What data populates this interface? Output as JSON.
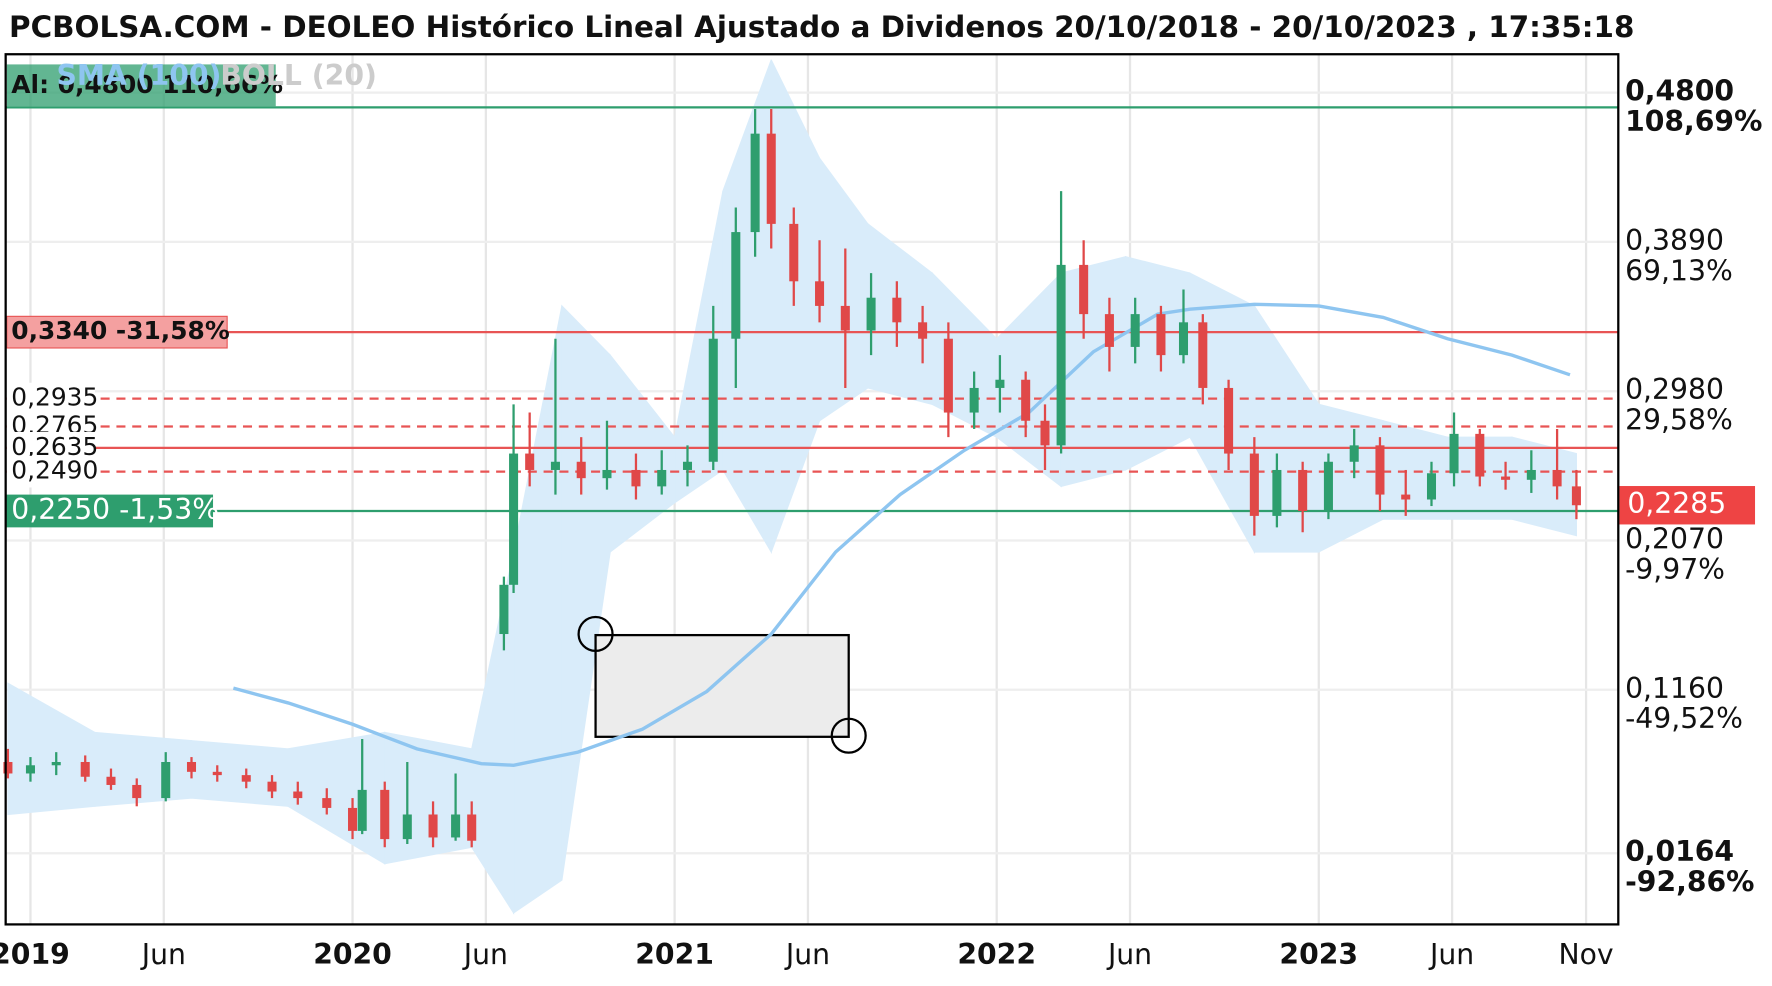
{
  "chart_data": {
    "type": "candlestick",
    "title": "PCBOLSA.COM - DEOLEO Histórico Lineal Ajustado a Dividenos 20/10/2018 - 20/10/2023 , 17:35:18",
    "xlim": [
      2018.923,
      2023.93
    ],
    "ylim": [
      -0.027,
      0.5034
    ],
    "y2lim": [
      -111.74,
      118.87
    ],
    "xticks": [
      {
        "value": 2019,
        "label": "2019"
      },
      {
        "value": 2019.414,
        "label": "Jun"
      },
      {
        "value": 2020,
        "label": "2020"
      },
      {
        "value": 2020.414,
        "label": "Jun"
      },
      {
        "value": 2021,
        "label": "2021"
      },
      {
        "value": 2021.414,
        "label": "Jun"
      },
      {
        "value": 2022,
        "label": "2022"
      },
      {
        "value": 2022.414,
        "label": "Jun"
      },
      {
        "value": 2023,
        "label": "2023"
      },
      {
        "value": 2023.414,
        "label": "Jun"
      },
      {
        "value": 2023.83,
        "label": "Nov"
      }
    ],
    "yticks": [
      {
        "value": 0.48,
        "label": "0,4800"
      },
      {
        "value": 0.389,
        "label": "0,3890"
      },
      {
        "value": 0.298,
        "label": "0,2980"
      },
      {
        "value": 0.207,
        "label": "0,2070"
      },
      {
        "value": 0.116,
        "label": "0,1160"
      },
      {
        "value": 0.0164,
        "label": "0,0164"
      }
    ],
    "y2ticks": [
      {
        "value": 108.69,
        "label": "108,69%"
      },
      {
        "value": 69.13,
        "label": "69,13%"
      },
      {
        "value": 29.58,
        "label": "29,58%"
      },
      {
        "value": -9.97,
        "label": "-9,97%"
      },
      {
        "value": -49.52,
        "label": "-49,52%"
      },
      {
        "value": -92.86,
        "label": "-92,86%"
      }
    ],
    "grid": true,
    "up_color": "#2e9e6e",
    "down_color": "#e04848",
    "candles": {
      "x": [
        2018.93,
        2019.0,
        2019.08,
        2019.17,
        2019.25,
        2019.33,
        2019.42,
        2019.5,
        2019.58,
        2019.67,
        2019.75,
        2019.83,
        2019.92,
        2020.0,
        2020.03,
        2020.1,
        2020.17,
        2020.25,
        2020.32,
        2020.37,
        2020.47,
        2020.5,
        2020.55,
        2020.63,
        2020.71,
        2020.79,
        2020.88,
        2020.96,
        2021.04,
        2021.12,
        2021.19,
        2021.25,
        2021.3,
        2021.37,
        2021.45,
        2021.53,
        2021.61,
        2021.69,
        2021.77,
        2021.85,
        2021.93,
        2022.01,
        2022.09,
        2022.15,
        2022.2,
        2022.27,
        2022.35,
        2022.43,
        2022.51,
        2022.58,
        2022.64,
        2022.72,
        2022.8,
        2022.87,
        2022.95,
        2023.03,
        2023.11,
        2023.19,
        2023.27,
        2023.35,
        2023.42,
        2023.5,
        2023.58,
        2023.66,
        2023.74,
        2023.8
      ],
      "open": [
        0.072,
        0.065,
        0.07,
        0.072,
        0.063,
        0.058,
        0.05,
        0.072,
        0.066,
        0.064,
        0.06,
        0.054,
        0.05,
        0.044,
        0.03,
        0.055,
        0.025,
        0.04,
        0.026,
        0.04,
        0.15,
        0.18,
        0.26,
        0.25,
        0.255,
        0.245,
        0.25,
        0.24,
        0.25,
        0.255,
        0.33,
        0.395,
        0.455,
        0.4,
        0.365,
        0.35,
        0.335,
        0.355,
        0.34,
        0.33,
        0.285,
        0.3,
        0.305,
        0.28,
        0.265,
        0.375,
        0.345,
        0.325,
        0.345,
        0.32,
        0.34,
        0.3,
        0.26,
        0.222,
        0.25,
        0.225,
        0.255,
        0.265,
        0.235,
        0.232,
        0.248,
        0.272,
        0.246,
        0.244,
        0.25,
        0.24
      ],
      "high": [
        0.08,
        0.075,
        0.078,
        0.076,
        0.068,
        0.062,
        0.078,
        0.075,
        0.07,
        0.068,
        0.064,
        0.06,
        0.056,
        0.05,
        0.086,
        0.06,
        0.072,
        0.048,
        0.065,
        0.048,
        0.185,
        0.29,
        0.285,
        0.33,
        0.27,
        0.28,
        0.26,
        0.262,
        0.265,
        0.35,
        0.41,
        0.47,
        0.47,
        0.41,
        0.39,
        0.385,
        0.37,
        0.365,
        0.35,
        0.34,
        0.31,
        0.32,
        0.31,
        0.29,
        0.42,
        0.39,
        0.355,
        0.355,
        0.35,
        0.36,
        0.345,
        0.305,
        0.27,
        0.26,
        0.255,
        0.26,
        0.275,
        0.27,
        0.25,
        0.255,
        0.285,
        0.275,
        0.255,
        0.262,
        0.275,
        0.25
      ],
      "low": [
        0.062,
        0.06,
        0.064,
        0.06,
        0.055,
        0.045,
        0.048,
        0.062,
        0.06,
        0.056,
        0.05,
        0.046,
        0.04,
        0.025,
        0.028,
        0.02,
        0.022,
        0.02,
        0.024,
        0.02,
        0.14,
        0.175,
        0.24,
        0.235,
        0.235,
        0.238,
        0.232,
        0.235,
        0.24,
        0.25,
        0.3,
        0.38,
        0.385,
        0.35,
        0.34,
        0.3,
        0.32,
        0.325,
        0.315,
        0.27,
        0.275,
        0.285,
        0.27,
        0.25,
        0.26,
        0.33,
        0.31,
        0.315,
        0.31,
        0.315,
        0.29,
        0.25,
        0.21,
        0.215,
        0.212,
        0.22,
        0.245,
        0.225,
        0.222,
        0.228,
        0.24,
        0.24,
        0.238,
        0.236,
        0.232,
        0.22
      ],
      "close": [
        0.065,
        0.07,
        0.072,
        0.063,
        0.058,
        0.05,
        0.072,
        0.066,
        0.064,
        0.06,
        0.054,
        0.05,
        0.044,
        0.03,
        0.055,
        0.025,
        0.04,
        0.026,
        0.04,
        0.024,
        0.18,
        0.26,
        0.25,
        0.255,
        0.245,
        0.25,
        0.24,
        0.25,
        0.255,
        0.33,
        0.395,
        0.455,
        0.4,
        0.365,
        0.35,
        0.335,
        0.355,
        0.34,
        0.33,
        0.285,
        0.3,
        0.305,
        0.28,
        0.265,
        0.375,
        0.345,
        0.325,
        0.345,
        0.32,
        0.34,
        0.3,
        0.26,
        0.222,
        0.25,
        0.225,
        0.255,
        0.265,
        0.235,
        0.232,
        0.248,
        0.272,
        0.246,
        0.244,
        0.25,
        0.24,
        0.2285
      ]
    },
    "sma": {
      "name": "SMA (100)",
      "color": "#8ec5f0",
      "x": [
        2019.63,
        2019.8,
        2020.0,
        2020.2,
        2020.4,
        2020.5,
        2020.7,
        2020.9,
        2021.1,
        2021.3,
        2021.5,
        2021.7,
        2021.9,
        2022.1,
        2022.3,
        2022.5,
        2022.6,
        2022.8,
        2023.0,
        2023.2,
        2023.4,
        2023.6,
        2023.78
      ],
      "values": [
        0.117,
        0.108,
        0.095,
        0.08,
        0.071,
        0.07,
        0.078,
        0.092,
        0.115,
        0.15,
        0.2,
        0.235,
        0.262,
        0.285,
        0.322,
        0.345,
        0.348,
        0.351,
        0.35,
        0.343,
        0.33,
        0.32,
        0.308
      ]
    },
    "bollinger": {
      "name": "BOLL (20)",
      "color": "#d9ecfa",
      "x": [
        2018.93,
        2019.2,
        2019.5,
        2019.8,
        2020.1,
        2020.37,
        2020.5,
        2020.65,
        2020.8,
        2021.0,
        2021.15,
        2021.3,
        2021.45,
        2021.6,
        2021.8,
        2022.0,
        2022.2,
        2022.4,
        2022.6,
        2022.8,
        2023.0,
        2023.2,
        2023.4,
        2023.6,
        2023.8
      ],
      "upper": [
        0.12,
        0.09,
        0.085,
        0.08,
        0.09,
        0.08,
        0.2,
        0.35,
        0.32,
        0.27,
        0.42,
        0.5,
        0.44,
        0.4,
        0.37,
        0.33,
        0.37,
        0.38,
        0.37,
        0.35,
        0.29,
        0.28,
        0.27,
        0.27,
        0.26
      ],
      "lower": [
        0.04,
        0.045,
        0.05,
        0.045,
        0.01,
        0.02,
        -0.02,
        0.0,
        0.2,
        0.23,
        0.25,
        0.2,
        0.28,
        0.3,
        0.29,
        0.27,
        0.24,
        0.25,
        0.27,
        0.2,
        0.2,
        0.22,
        0.22,
        0.22,
        0.21
      ]
    },
    "levels": [
      {
        "value": 0.334,
        "label": "0,3340  -31,58%",
        "color": "#e85454",
        "label_fill": "#f4a0a0",
        "dashed": false
      },
      {
        "value": 0.2935,
        "label": "0,2935",
        "color": "#e85454",
        "label_fill": "#ffffff",
        "dashed": true
      },
      {
        "value": 0.2765,
        "label": "0,2765",
        "color": "#e85454",
        "label_fill": "#ffffff",
        "dashed": true
      },
      {
        "value": 0.2635,
        "label": "0,2635",
        "color": "#e85454",
        "label_fill": "#ffffff",
        "dashed": false
      },
      {
        "value": 0.249,
        "label": "0,2490",
        "color": "#e85454",
        "label_fill": "#ffffff",
        "dashed": true
      },
      {
        "value": 0.225,
        "label": "0,2250  -1,53%",
        "color": "#2e9e6e",
        "label_fill": "#2e9e6e",
        "dashed": false
      }
    ],
    "alert": {
      "value": 0.48,
      "label": "Al: 0,4800  110,66%",
      "color": "#2e9e6e"
    },
    "last": {
      "value": 0.2285,
      "label": "0,2285",
      "color": "#ee4444"
    }
  }
}
